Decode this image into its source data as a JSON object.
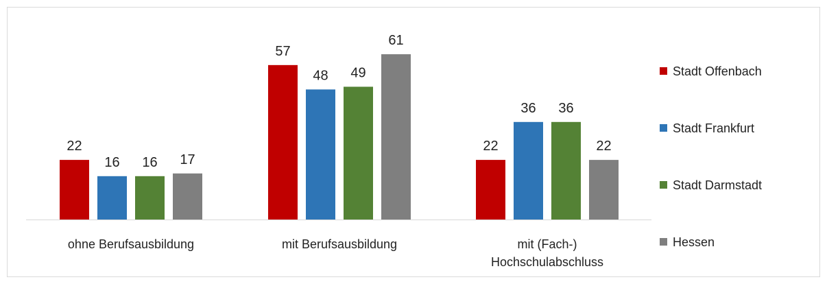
{
  "chart_data": {
    "type": "bar",
    "categories": [
      "ohne Berufsausbildung",
      "mit Berufsausbildung",
      "mit (Fach-) Hochschulabschluss"
    ],
    "series": [
      {
        "name": "Stadt Offenbach",
        "color": "#c00000",
        "values": [
          22,
          57,
          22
        ]
      },
      {
        "name": "Stadt Frankfurt",
        "color": "#2e75b6",
        "values": [
          16,
          48,
          36
        ]
      },
      {
        "name": "Stadt Darmstadt",
        "color": "#548235",
        "values": [
          16,
          49,
          36
        ]
      },
      {
        "name": "Hessen",
        "color": "#7f7f7f",
        "values": [
          17,
          61,
          22
        ]
      }
    ]
  }
}
